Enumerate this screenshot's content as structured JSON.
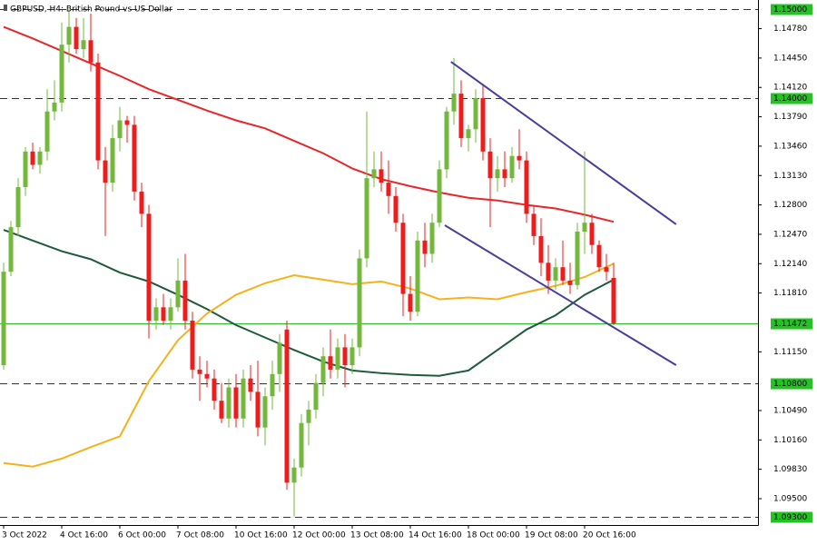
{
  "chart_data": {
    "type": "candlestick",
    "title": "GBPUSD, H4:  British Pound vs US Dollar",
    "categories": [
      "3 Oct 2022",
      null,
      null,
      null,
      null,
      null,
      null,
      null,
      "4 Oct 16:00",
      null,
      null,
      null,
      null,
      null,
      null,
      null,
      "6 Oct 00:00",
      null,
      null,
      null,
      null,
      null,
      null,
      null,
      "7 Oct 08:00",
      null,
      null,
      null,
      null,
      null,
      null,
      null,
      "10 Oct 16:00",
      null,
      null,
      null,
      null,
      null,
      null,
      null,
      "12 Oct 00:00",
      null,
      null,
      null,
      null,
      null,
      null,
      null,
      "13 Oct 08:00",
      null,
      null,
      null,
      null,
      null,
      null,
      null,
      "14 Oct 16:00",
      null,
      null,
      null,
      null,
      null,
      null,
      null,
      "18 Oct 00:00",
      null,
      null,
      null,
      null,
      null,
      null,
      null,
      "19 Oct 08:00",
      null,
      null,
      null,
      null,
      null,
      null,
      null,
      "20 Oct 16:00",
      null,
      null,
      null,
      null
    ],
    "open": [
      1.11,
      1.1205,
      1.1255,
      1.13,
      1.134,
      1.1325,
      1.134,
      1.1385,
      1.1395,
      1.146,
      1.148,
      1.1455,
      1.1465,
      1.144,
      1.133,
      1.1305,
      1.1355,
      1.1375,
      1.137,
      1.1295,
      1.127,
      1.115,
      1.1165,
      1.115,
      1.1165,
      1.1195,
      1.115,
      1.1095,
      1.109,
      1.1085,
      1.106,
      1.104,
      1.1075,
      1.104,
      1.1085,
      1.107,
      1.103,
      1.1065,
      1.109,
      1.114,
      1.0968,
      1.0985,
      1.1035,
      1.105,
      1.108,
      1.111,
      1.1095,
      1.112,
      1.11,
      1.112,
      1.122,
      1.131,
      1.132,
      1.1305,
      1.129,
      1.126,
      1.118,
      1.116,
      1.124,
      1.1225,
      1.126,
      1.132,
      1.1385,
      1.1405,
      1.1355,
      1.1365,
      1.14,
      1.134,
      1.131,
      1.132,
      1.131,
      1.1335,
      1.133,
      1.127,
      1.1245,
      1.1215,
      1.1195,
      1.121,
      1.1195,
      1.119,
      1.125,
      1.126,
      1.1235,
      1.121,
      1.1198
    ],
    "high": [
      1.1215,
      1.1262,
      1.131,
      1.1345,
      1.135,
      1.1345,
      1.141,
      1.142,
      1.1485,
      1.15,
      1.149,
      1.149,
      1.1495,
      1.145,
      1.1345,
      1.137,
      1.139,
      1.138,
      1.138,
      1.1305,
      1.128,
      1.1175,
      1.118,
      1.1175,
      1.122,
      1.1225,
      1.116,
      1.111,
      1.1105,
      1.1095,
      1.108,
      1.1085,
      1.109,
      1.1095,
      1.11,
      1.1105,
      1.1075,
      1.1105,
      1.1135,
      1.115,
      1.0995,
      1.1045,
      1.106,
      1.109,
      1.112,
      1.114,
      1.113,
      1.1135,
      1.113,
      1.123,
      1.1385,
      1.134,
      1.134,
      1.133,
      1.13,
      1.127,
      1.12,
      1.125,
      1.126,
      1.127,
      1.133,
      1.139,
      1.1445,
      1.142,
      1.137,
      1.141,
      1.1415,
      1.1355,
      1.1335,
      1.134,
      1.1345,
      1.1365,
      1.134,
      1.128,
      1.1265,
      1.1235,
      1.122,
      1.124,
      1.1215,
      1.126,
      1.134,
      1.127,
      1.124,
      1.1225,
      1.1215
    ],
    "low": [
      1.1095,
      1.12,
      1.1245,
      1.129,
      1.132,
      1.1315,
      1.133,
      1.1375,
      1.1385,
      1.144,
      1.145,
      1.1445,
      1.143,
      1.132,
      1.1245,
      1.1295,
      1.134,
      1.135,
      1.1285,
      1.1255,
      1.113,
      1.114,
      1.1145,
      1.114,
      1.116,
      1.114,
      1.1085,
      1.106,
      1.1075,
      1.105,
      1.1035,
      1.103,
      1.103,
      1.103,
      1.106,
      1.102,
      1.101,
      1.105,
      1.107,
      1.096,
      1.093,
      1.0975,
      1.101,
      1.104,
      1.1065,
      1.1085,
      1.1085,
      1.1075,
      1.109,
      1.111,
      1.121,
      1.13,
      1.1295,
      1.127,
      1.125,
      1.1155,
      1.115,
      1.1155,
      1.121,
      1.1215,
      1.1255,
      1.131,
      1.137,
      1.1345,
      1.134,
      1.135,
      1.133,
      1.1255,
      1.1295,
      1.13,
      1.1305,
      1.132,
      1.126,
      1.1235,
      1.12,
      1.118,
      1.1185,
      1.119,
      1.118,
      1.1185,
      1.1225,
      1.1225,
      1.1205,
      1.1195,
      1.1145
    ],
    "close": [
      1.1205,
      1.1255,
      1.13,
      1.134,
      1.1325,
      1.134,
      1.1385,
      1.1395,
      1.146,
      1.148,
      1.1455,
      1.1465,
      1.144,
      1.133,
      1.1305,
      1.1355,
      1.1375,
      1.137,
      1.1295,
      1.127,
      1.115,
      1.1165,
      1.115,
      1.1165,
      1.1195,
      1.115,
      1.1095,
      1.109,
      1.1085,
      1.106,
      1.104,
      1.1075,
      1.104,
      1.1085,
      1.107,
      1.103,
      1.1065,
      1.109,
      1.1125,
      1.0968,
      1.0985,
      1.1035,
      1.105,
      1.108,
      1.111,
      1.1095,
      1.112,
      1.11,
      1.112,
      1.122,
      1.131,
      1.132,
      1.1305,
      1.129,
      1.126,
      1.118,
      1.116,
      1.124,
      1.1225,
      1.126,
      1.132,
      1.1385,
      1.1405,
      1.1355,
      1.1365,
      1.14,
      1.134,
      1.131,
      1.132,
      1.131,
      1.1335,
      1.133,
      1.127,
      1.1245,
      1.1215,
      1.1195,
      1.121,
      1.1195,
      1.119,
      1.125,
      1.126,
      1.1235,
      1.121,
      1.1205,
      1.1147
    ],
    "up_color": "#73b83c",
    "down_color": "#ee1c1c",
    "indicators": {
      "x": [
        0,
        4,
        8,
        12,
        16,
        20,
        24,
        28,
        32,
        36,
        40,
        44,
        48,
        52,
        56,
        60,
        64,
        68,
        72,
        76,
        80,
        84
      ],
      "series": [
        {
          "color": "#e8262a",
          "values": [
            1.148,
            1.1467,
            1.1453,
            1.1439,
            1.1425,
            1.141,
            1.1398,
            1.1386,
            1.1375,
            1.1366,
            1.1352,
            1.1338,
            1.1321,
            1.1309,
            1.1301,
            1.1294,
            1.1288,
            1.1285,
            1.128,
            1.1276,
            1.1269,
            1.1261
          ]
        },
        {
          "color": "#1e5a3c",
          "values": [
            1.1252,
            1.124,
            1.1228,
            1.1219,
            1.1204,
            1.1194,
            1.1179,
            1.1163,
            1.1145,
            1.1131,
            1.1117,
            1.1104,
            1.1094,
            1.1091,
            1.1089,
            1.1088,
            1.1094,
            1.1117,
            1.114,
            1.1156,
            1.1179,
            1.1196
          ]
        },
        {
          "color": "#f5b21a",
          "values": [
            1.099,
            1.0986,
            1.0995,
            1.1008,
            1.102,
            1.1082,
            1.1128,
            1.1158,
            1.1179,
            1.1192,
            1.1201,
            1.1196,
            1.1191,
            1.1194,
            1.1186,
            1.1174,
            1.1176,
            1.1174,
            1.1182,
            1.1189,
            1.1199,
            1.1214
          ]
        }
      ]
    },
    "trendlines": [
      {
        "color": "#4b3b9b",
        "x": [
          61.6,
          92.6
        ],
        "values": [
          1.14408,
          1.12582
        ]
      },
      {
        "color": "#4b3b9b",
        "x": [
          60.75,
          92.6
        ],
        "values": [
          1.12571,
          1.11
        ]
      }
    ],
    "hlines": [
      {
        "value": 1.15,
        "label": "1.15000",
        "style": "dashed"
      },
      {
        "value": 1.14,
        "label": "1.14000",
        "style": "dashed"
      },
      {
        "value": 1.11472,
        "label": "1.11472",
        "style": "solid"
      },
      {
        "value": 1.108,
        "label": "1.10800",
        "style": "dashed"
      },
      {
        "value": 1.093,
        "label": "1.09300",
        "style": "dashed"
      }
    ],
    "hline_colors": {
      "dashed": "#333333",
      "solid": "#2fb82f",
      "label_box": "#22c322"
    },
    "ylim": [
      1.09204,
      1.15102
    ],
    "yticks": [
      {
        "value": 1.1478,
        "label": "1.14780"
      },
      {
        "value": 1.1445,
        "label": "1.14450"
      },
      {
        "value": 1.1412,
        "label": "1.14120"
      },
      {
        "value": 1.1379,
        "label": "1.13790"
      },
      {
        "value": 1.1346,
        "label": "1.13460"
      },
      {
        "value": 1.1313,
        "label": "1.13130"
      },
      {
        "value": 1.128,
        "label": "1.12800"
      },
      {
        "value": 1.1247,
        "label": "1.12470"
      },
      {
        "value": 1.1214,
        "label": "1.12140"
      },
      {
        "value": 1.1181,
        "label": "1.11810"
      },
      {
        "value": 1.1115,
        "label": "1.11150"
      },
      {
        "value": 1.1049,
        "label": "1.10490"
      },
      {
        "value": 1.1016,
        "label": "1.10160"
      },
      {
        "value": 1.0983,
        "label": "1.09830"
      },
      {
        "value": 1.095,
        "label": "1.09500"
      }
    ],
    "grid": false
  }
}
